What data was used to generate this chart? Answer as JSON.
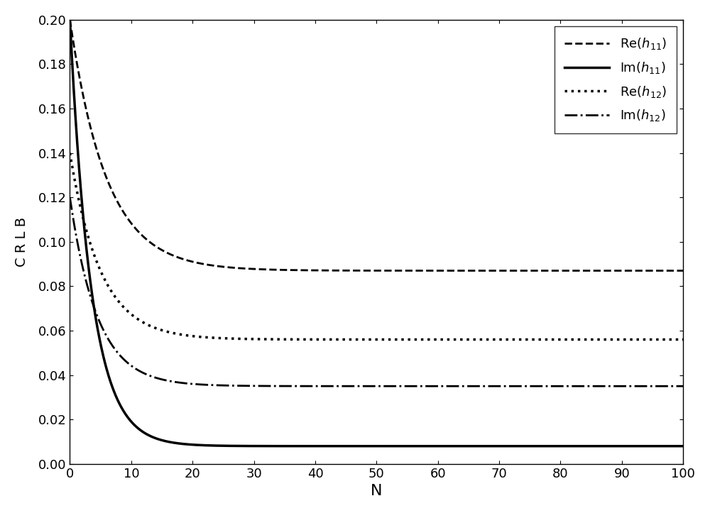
{
  "title": "",
  "xlabel": "N",
  "ylabel": "C R L B",
  "xlim": [
    0,
    100
  ],
  "ylim": [
    0,
    0.2
  ],
  "yticks": [
    0,
    0.02,
    0.04,
    0.06,
    0.08,
    0.1,
    0.12,
    0.14,
    0.16,
    0.18,
    0.2
  ],
  "xticks": [
    0,
    10,
    20,
    30,
    40,
    50,
    60,
    70,
    80,
    90,
    100
  ],
  "curves": [
    {
      "label": "Re($h_{11}$)",
      "style": "dashed",
      "color": "black",
      "linewidth": 2.0,
      "a": 0.113,
      "b": 0.087,
      "tau": 6.0
    },
    {
      "label": "Im($h_{11}$)",
      "style": "solid",
      "color": "black",
      "linewidth": 2.5,
      "a": 0.192,
      "b": 0.008,
      "tau": 3.5
    },
    {
      "label": "Re($h_{12}$)",
      "style": "dotted",
      "color": "black",
      "linewidth": 2.5,
      "a": 0.084,
      "b": 0.056,
      "tau": 5.0
    },
    {
      "label": "Im($h_{12}$)",
      "style": "dashdot",
      "color": "black",
      "linewidth": 2.0,
      "a": 0.085,
      "b": 0.035,
      "tau": 4.5
    }
  ],
  "legend_styles": [
    "dashed",
    "solid",
    "dotted",
    "dashdot"
  ],
  "legend_linewidths": [
    2.0,
    2.5,
    2.5,
    2.0
  ],
  "background": "white"
}
